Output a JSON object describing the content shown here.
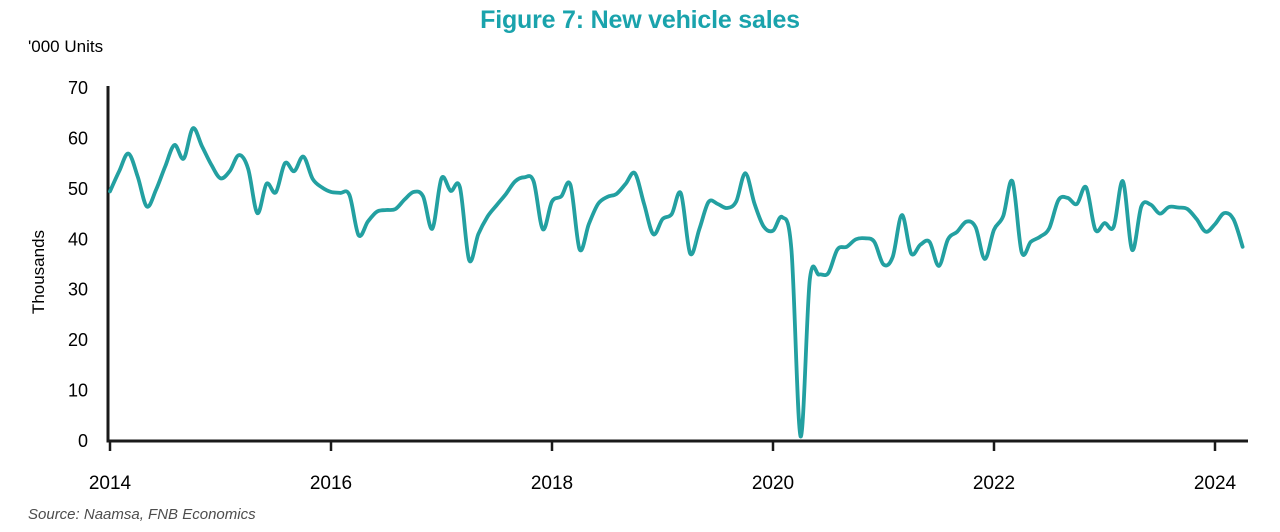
{
  "figure": {
    "title": "Figure 7: New vehicle sales",
    "unit_label": "'000 Units",
    "y_axis_label": "Thousands",
    "source": "Source: Naamsa, FNB Economics"
  },
  "colors": {
    "line": "#23a0a1",
    "title": "#1aa3ac",
    "axis": "#1a1a1a",
    "tick_text": "#000000",
    "source_text": "#4d4d4d"
  },
  "chart_data": {
    "type": "line",
    "title": "Figure 7: New vehicle sales",
    "xlabel": "",
    "ylabel": "Thousands",
    "unit": "'000 Units",
    "ylim": [
      0,
      70
    ],
    "yticks": [
      0,
      10,
      20,
      30,
      40,
      50,
      60,
      70
    ],
    "xticks": [
      2014,
      2016,
      2018,
      2020,
      2022,
      2024
    ],
    "grid": false,
    "legend_position": "none",
    "frequency": "monthly",
    "x_start_year": 2014,
    "x_start_month": 1,
    "series": [
      {
        "name": "New vehicle sales ('000 units, monthly)",
        "values": [
          49.5,
          53.5,
          57.0,
          52.5,
          46.5,
          49.8,
          54.5,
          58.7,
          56.0,
          62.0,
          58.4,
          54.8,
          52.1,
          53.5,
          56.7,
          54.0,
          45.2,
          51.0,
          49.3,
          55.1,
          53.5,
          56.4,
          52.0,
          50.3,
          49.4,
          49.2,
          48.8,
          40.8,
          43.5,
          45.5,
          45.8,
          46.0,
          47.9,
          49.4,
          48.5,
          42.1,
          52.1,
          49.6,
          50.3,
          35.9,
          41.0,
          44.5,
          46.8,
          49.0,
          51.5,
          52.3,
          51.5,
          42.0,
          47.5,
          48.5,
          50.8,
          38.0,
          43.0,
          47.0,
          48.4,
          49.0,
          51.0,
          53.1,
          47.0,
          41.0,
          44.0,
          45.0,
          49.1,
          37.2,
          42.0,
          47.4,
          47.0,
          46.2,
          47.5,
          53.1,
          47.0,
          42.5,
          41.7,
          44.4,
          38.0,
          0.9,
          32.0,
          33.0,
          33.3,
          38.0,
          38.5,
          40.0,
          40.2,
          39.5,
          35.0,
          36.5,
          44.8,
          37.2,
          38.9,
          39.5,
          34.7,
          40.0,
          41.5,
          43.5,
          42.4,
          36.1,
          41.9,
          44.6,
          51.5,
          37.5,
          39.5,
          40.5,
          42.2,
          47.8,
          48.2,
          47.0,
          50.3,
          41.9,
          43.2,
          42.5,
          51.5,
          37.9,
          46.5,
          46.9,
          45.1,
          46.4,
          46.3,
          46.0,
          44.0,
          41.5,
          43.0,
          45.2,
          44.0,
          38.5
        ]
      }
    ]
  }
}
